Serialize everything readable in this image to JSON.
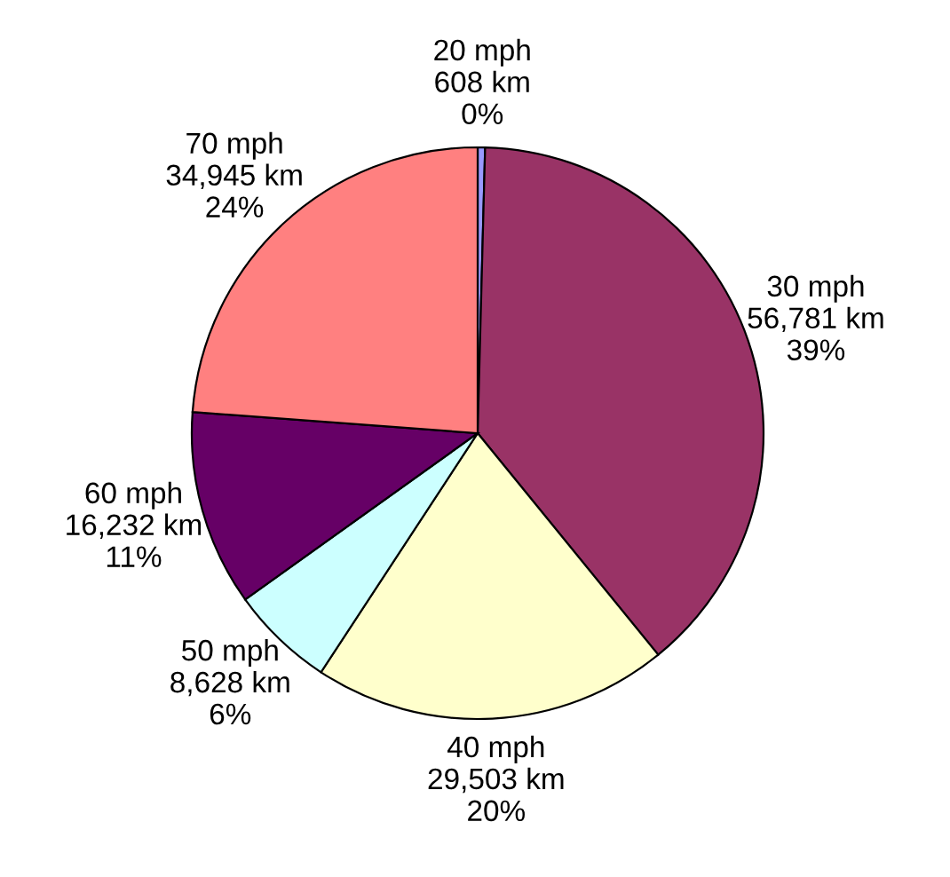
{
  "chart_data": {
    "type": "pie",
    "categories": [
      "20 mph",
      "30 mph",
      "40 mph",
      "50 mph",
      "60 mph",
      "70 mph"
    ],
    "values": [
      608,
      56781,
      29503,
      8628,
      16232,
      34945
    ],
    "value_labels": [
      "608 km\n0%",
      "56,781 km\n39%",
      "29,503 km\n20%",
      "8,628 km\n6%",
      "16,232 km\n11%",
      "34,945 km\n24%"
    ],
    "colors": [
      "#9999ff",
      "#993366",
      "#ffffcc",
      "#ccffff",
      "#660066",
      "#ff8080"
    ]
  }
}
